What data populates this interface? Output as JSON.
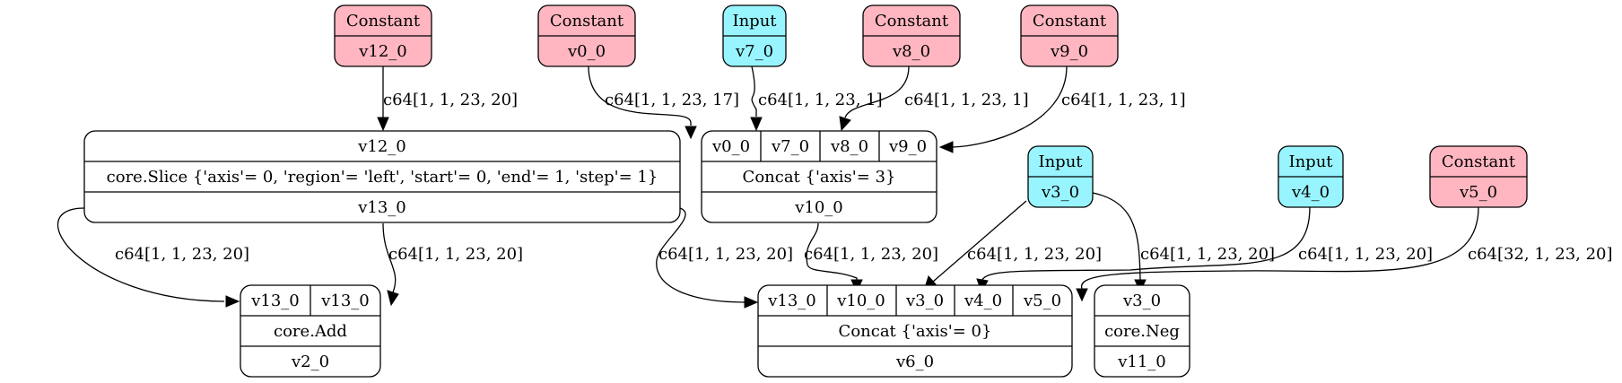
{
  "colors": {
    "constant_fill": "#ffb6c1",
    "input_fill": "#98f5ff",
    "op_fill": "#ffffff",
    "stroke": "#000000"
  },
  "nodes": {
    "c_v12": {
      "title": "Constant",
      "value": "v12_0"
    },
    "c_v0": {
      "title": "Constant",
      "value": "v0_0"
    },
    "i_v7": {
      "title": "Input",
      "value": "v7_0"
    },
    "c_v8": {
      "title": "Constant",
      "value": "v8_0"
    },
    "c_v9": {
      "title": "Constant",
      "value": "v9_0"
    },
    "i_v3": {
      "title": "Input",
      "value": "v3_0"
    },
    "i_v4": {
      "title": "Input",
      "value": "v4_0"
    },
    "c_v5": {
      "title": "Constant",
      "value": "v5_0"
    },
    "slice": {
      "inputs": [
        "v12_0"
      ],
      "op": "core.Slice {'axis'= 0, 'region'= 'left', 'start'= 0, 'end'= 1, 'step'= 1}",
      "output": "v13_0"
    },
    "concat3": {
      "inputs": [
        "v0_0",
        "v7_0",
        "v8_0",
        "v9_0"
      ],
      "op": "Concat {'axis'= 3}",
      "output": "v10_0"
    },
    "add": {
      "inputs": [
        "v13_0",
        "v13_0"
      ],
      "op": "core.Add",
      "output": "v2_0"
    },
    "concat0": {
      "inputs": [
        "v13_0",
        "v10_0",
        "v3_0",
        "v4_0",
        "v5_0"
      ],
      "op": "Concat {'axis'= 0}",
      "output": "v6_0"
    },
    "neg": {
      "inputs": [
        "v3_0"
      ],
      "op": "core.Neg",
      "output": "v11_0"
    }
  },
  "edges": {
    "v12_to_slice": "c64[1, 1, 23, 20]",
    "v0_to_concat3": "c64[1, 1, 23, 17]",
    "v7_to_concat3": "c64[1, 1, 23, 1]",
    "v8_to_concat3": "c64[1, 1, 23, 1]",
    "v9_to_concat3": "c64[1, 1, 23, 1]",
    "slice_to_add_a": "c64[1, 1, 23, 20]",
    "slice_to_add_b": "c64[1, 1, 23, 20]",
    "slice_to_concat0": "c64[1, 1, 23, 20]",
    "concat3_to_concat0": "c64[1, 1, 23, 20]",
    "v3_to_concat0": "c64[1, 1, 23, 20]",
    "v3_to_neg": "c64[1, 1, 23, 20]",
    "v4_to_concat0": "c64[1, 1, 23, 20]",
    "v5_to_concat0": "c64[32, 1, 23, 20]"
  }
}
